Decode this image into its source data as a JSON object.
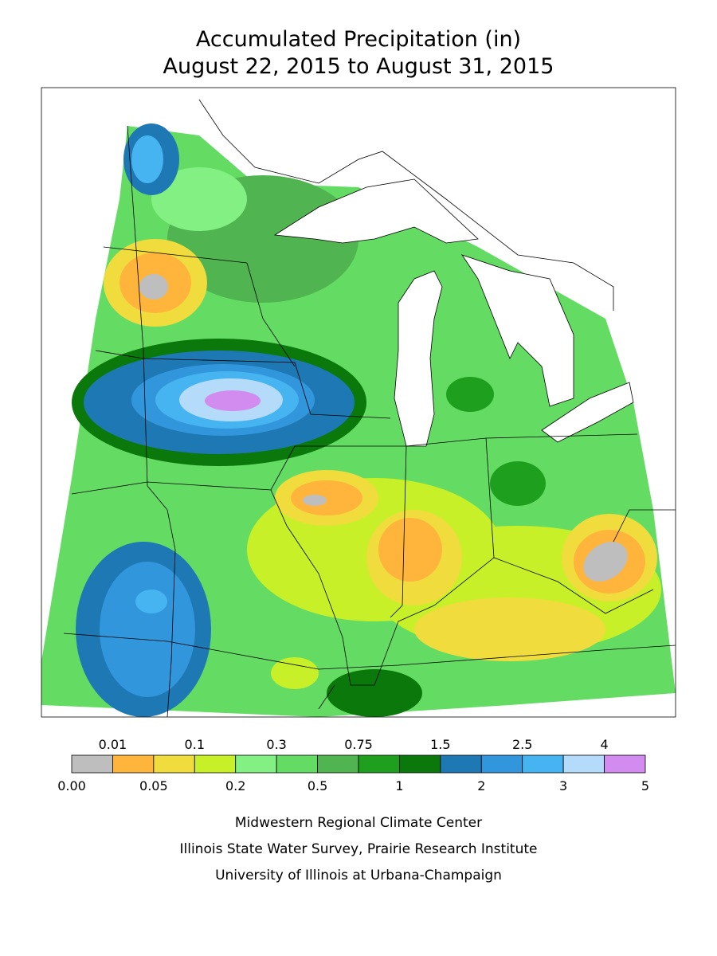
{
  "title": [
    "Accumulated Precipitation (in)",
    "August 22, 2015 to August 31, 2015"
  ],
  "legend": {
    "breaks": [
      {
        "value": 0,
        "label": "0.00"
      },
      0.01,
      0.05,
      0.1,
      0.2,
      0.3,
      0.5,
      0.75,
      1,
      1.5,
      2,
      2.5,
      3,
      4,
      5
    ],
    "colors": [
      "#bebebe",
      "#ffb43c",
      "#f0dc3c",
      "#c8f028",
      "#82f082",
      "#64dc64",
      "#50b450",
      "#1ea01e",
      "#0a780a",
      "#1e78b4",
      "#3296dc",
      "#46b4f0",
      "#b4dcfa",
      "#d28cf0"
    ]
  },
  "credits": [
    "Midwestern Regional Climate Center",
    "Illinois State Water Survey, Prairie Research Institute",
    "University of Illinois at Urbana-Champaign"
  ]
}
